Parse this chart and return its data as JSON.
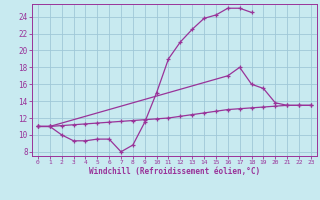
{
  "xlabel": "Windchill (Refroidissement éolien,°C)",
  "background_color": "#c8eaf0",
  "grid_color": "#a0c8d8",
  "line_color": "#993399",
  "xlim": [
    -0.5,
    23.5
  ],
  "ylim": [
    7.5,
    25.5
  ],
  "xticks": [
    0,
    1,
    2,
    3,
    4,
    5,
    6,
    7,
    8,
    9,
    10,
    11,
    12,
    13,
    14,
    15,
    16,
    17,
    18,
    19,
    20,
    21,
    22,
    23
  ],
  "yticks": [
    8,
    10,
    12,
    14,
    16,
    18,
    20,
    22,
    24
  ],
  "line1_x": [
    0,
    1,
    2,
    3,
    4,
    5,
    6,
    7,
    8,
    9,
    10,
    11,
    12,
    13,
    14,
    15,
    16,
    17,
    18
  ],
  "line1_y": [
    11.0,
    11.0,
    10.0,
    9.3,
    9.3,
    9.5,
    9.5,
    8.0,
    8.8,
    11.5,
    15.0,
    19.0,
    21.0,
    22.5,
    23.8,
    24.2,
    25.0,
    25.0,
    24.5
  ],
  "line2_x": [
    0,
    1,
    16,
    17,
    18,
    19,
    20,
    21,
    22,
    23
  ],
  "line2_y": [
    11.0,
    11.0,
    17.0,
    18.0,
    16.0,
    15.5,
    13.8,
    13.5,
    13.5,
    13.5
  ],
  "line3_x": [
    0,
    1,
    2,
    3,
    4,
    5,
    6,
    7,
    8,
    9,
    10,
    11,
    12,
    13,
    14,
    15,
    16,
    17,
    18,
    19,
    20,
    21,
    22,
    23
  ],
  "line3_y": [
    11.0,
    11.0,
    11.1,
    11.2,
    11.3,
    11.4,
    11.5,
    11.6,
    11.7,
    11.8,
    11.9,
    12.0,
    12.2,
    12.4,
    12.6,
    12.8,
    13.0,
    13.1,
    13.2,
    13.3,
    13.4,
    13.5,
    13.5,
    13.5
  ]
}
